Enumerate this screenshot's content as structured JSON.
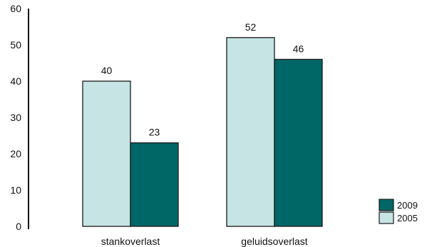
{
  "chart_data": {
    "type": "bar",
    "categories": [
      "stankoverlast",
      "geluidsoverlast"
    ],
    "series": [
      {
        "name": "2005",
        "values": [
          40,
          52
        ],
        "color": "#c5e4e3"
      },
      {
        "name": "2009",
        "values": [
          23,
          46
        ],
        "color": "#006666"
      }
    ],
    "ylim": [
      0,
      60
    ],
    "yticks": [
      0,
      10,
      20,
      30,
      40,
      50,
      60
    ],
    "data_labels": true,
    "grid": false,
    "legend_position": "bottom-right",
    "legend_order": [
      "2009",
      "2005"
    ],
    "bar_outline_color": "#1a1a1a"
  }
}
